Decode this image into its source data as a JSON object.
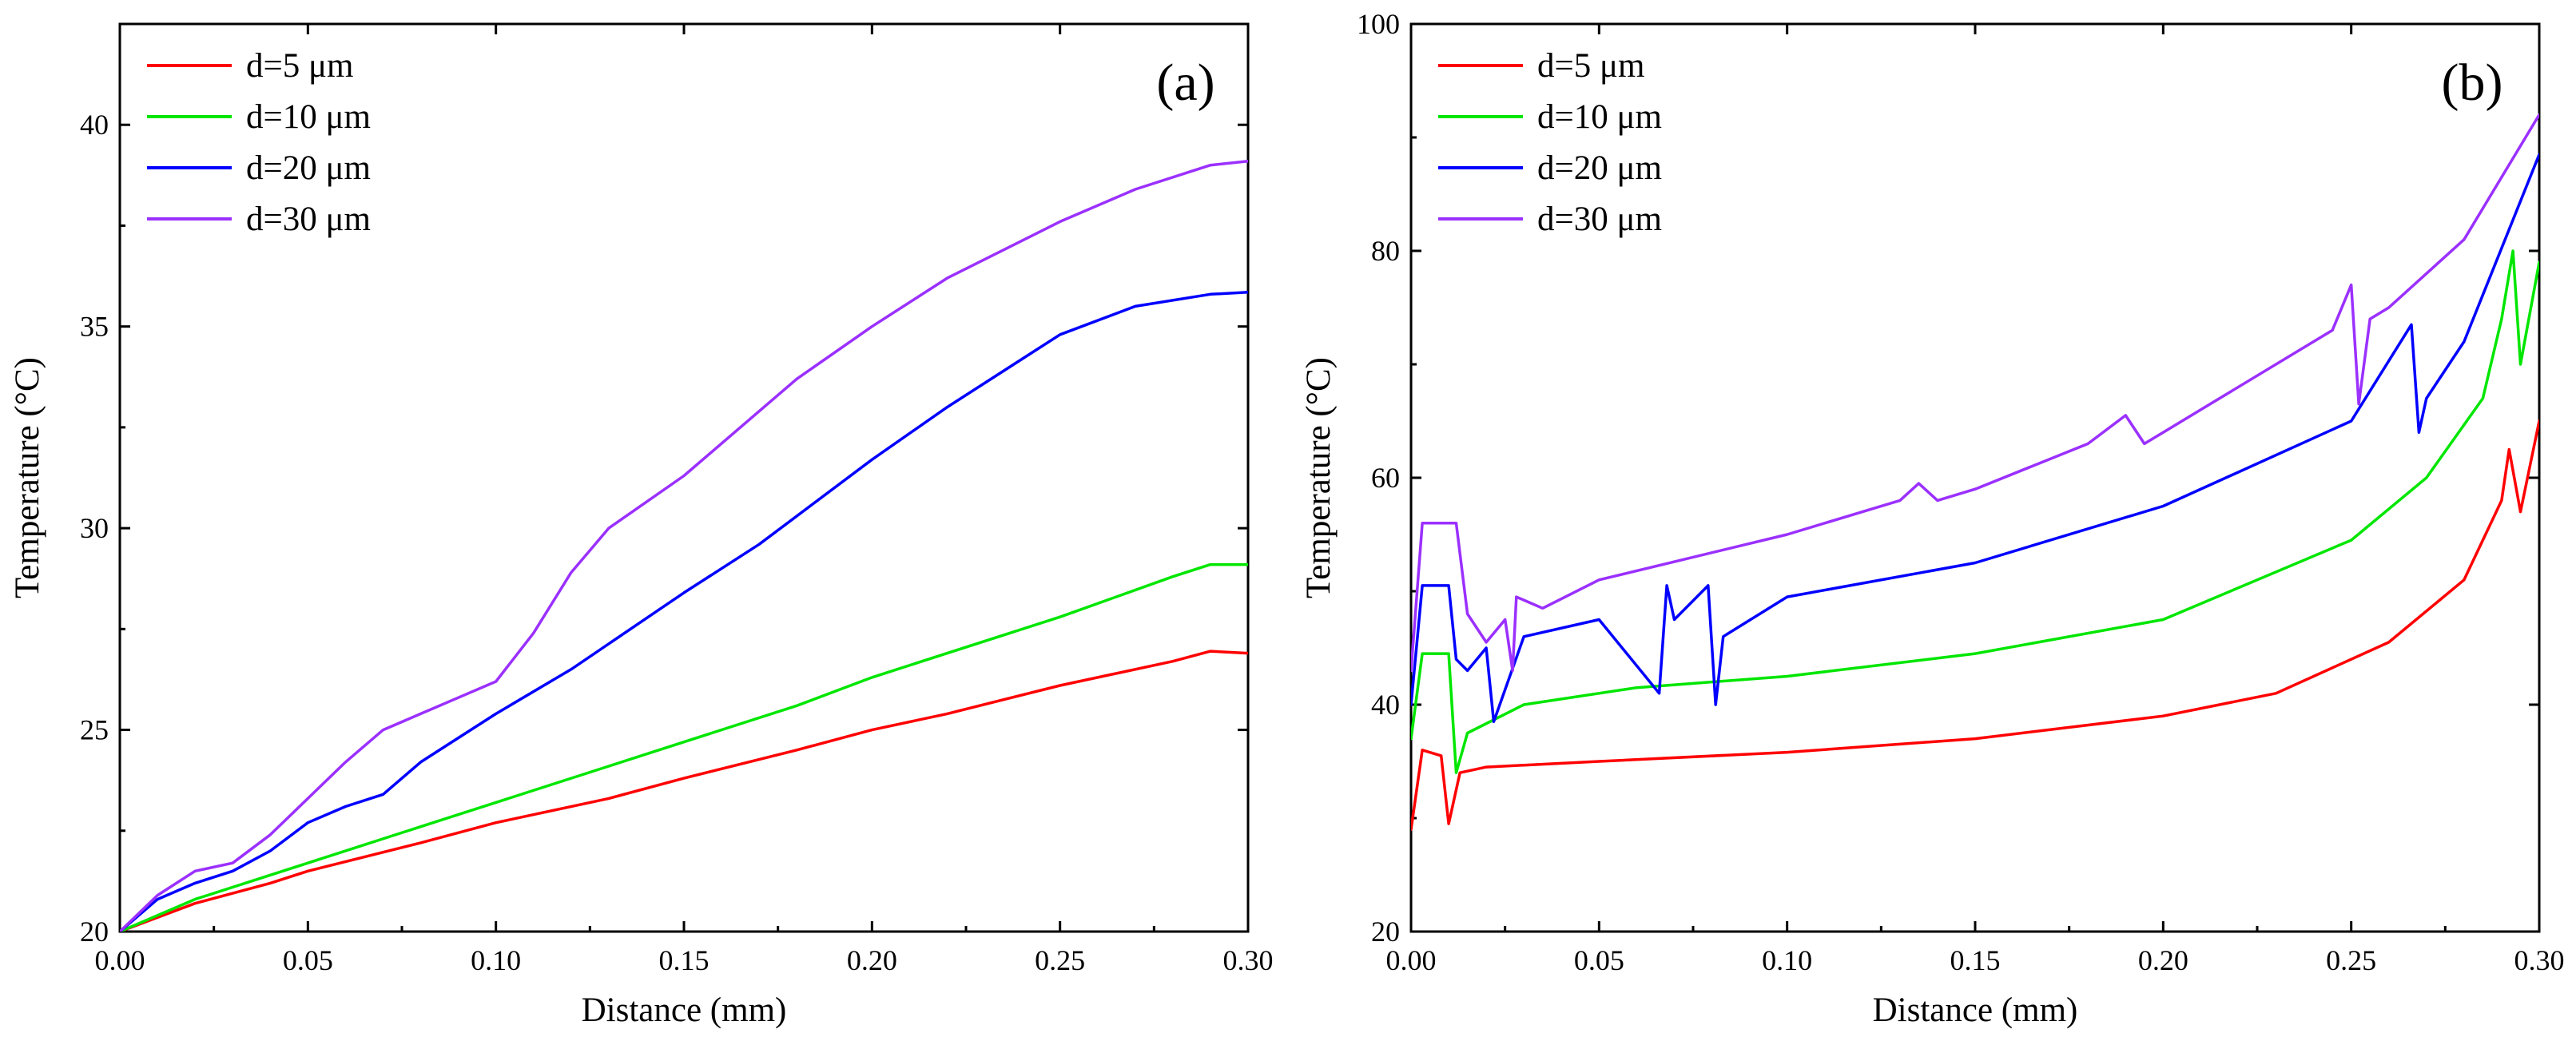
{
  "chart_data": [
    {
      "type": "line",
      "panel_label": "(a)",
      "xlabel": "Distance (mm)",
      "ylabel": "Temperature (°C)",
      "xlim": [
        0,
        0.3
      ],
      "ylim": [
        20,
        42.5
      ],
      "xticks": [
        0,
        0.05,
        0.1,
        0.15,
        0.2,
        0.25,
        0.3
      ],
      "xticklabels": [
        "0.00",
        "0.05",
        "0.10",
        "0.15",
        "0.20",
        "0.25",
        "0.30"
      ],
      "yticks": [
        20,
        25,
        30,
        35,
        40
      ],
      "yticklabels": [
        "20",
        "25",
        "30",
        "35",
        "40"
      ],
      "legend_position": "top-left",
      "series": [
        {
          "name": "d=5 μm",
          "color": "#ff0000",
          "x": [
            0,
            0.02,
            0.04,
            0.05,
            0.08,
            0.1,
            0.13,
            0.15,
            0.18,
            0.2,
            0.22,
            0.25,
            0.28,
            0.29,
            0.3
          ],
          "y": [
            20,
            20.7,
            21.2,
            21.5,
            22.2,
            22.7,
            23.3,
            23.8,
            24.5,
            25.0,
            25.4,
            26.1,
            26.7,
            26.95,
            26.9
          ]
        },
        {
          "name": "d=10 μm",
          "color": "#00e600",
          "x": [
            0,
            0.02,
            0.04,
            0.05,
            0.08,
            0.1,
            0.13,
            0.15,
            0.18,
            0.2,
            0.22,
            0.25,
            0.28,
            0.29,
            0.3
          ],
          "y": [
            20,
            20.8,
            21.4,
            21.7,
            22.6,
            23.2,
            24.1,
            24.7,
            25.6,
            26.3,
            26.9,
            27.8,
            28.8,
            29.1,
            29.1
          ]
        },
        {
          "name": "d=20 μm",
          "color": "#0000ff",
          "x": [
            0,
            0.01,
            0.02,
            0.03,
            0.04,
            0.05,
            0.06,
            0.07,
            0.08,
            0.1,
            0.12,
            0.15,
            0.17,
            0.2,
            0.22,
            0.25,
            0.27,
            0.29,
            0.3
          ],
          "y": [
            20,
            20.8,
            21.2,
            21.5,
            22.0,
            22.7,
            23.1,
            23.4,
            24.2,
            25.4,
            26.5,
            28.4,
            29.6,
            31.7,
            33.0,
            34.8,
            35.5,
            35.8,
            35.85
          ]
        },
        {
          "name": "d=30 μm",
          "color": "#9b30ff",
          "x": [
            0,
            0.01,
            0.02,
            0.03,
            0.04,
            0.05,
            0.06,
            0.07,
            0.08,
            0.09,
            0.1,
            0.11,
            0.12,
            0.13,
            0.15,
            0.18,
            0.2,
            0.22,
            0.25,
            0.27,
            0.29,
            0.3
          ],
          "y": [
            20,
            20.9,
            21.5,
            21.7,
            22.4,
            23.3,
            24.2,
            25.0,
            25.4,
            25.8,
            26.2,
            27.4,
            28.9,
            30.0,
            31.3,
            33.7,
            35.0,
            36.2,
            37.6,
            38.4,
            39.0,
            39.1
          ]
        }
      ]
    },
    {
      "type": "line",
      "panel_label": "(b)",
      "xlabel": "Distance (mm)",
      "ylabel": "Temperature (°C)",
      "xlim": [
        0,
        0.3
      ],
      "ylim": [
        20,
        100
      ],
      "xticks": [
        0,
        0.05,
        0.1,
        0.15,
        0.2,
        0.25,
        0.3
      ],
      "xticklabels": [
        "0.00",
        "0.05",
        "0.10",
        "0.15",
        "0.20",
        "0.25",
        "0.30"
      ],
      "yticks": [
        20,
        40,
        60,
        80,
        100
      ],
      "yticklabels": [
        "20",
        "40",
        "60",
        "80",
        "100"
      ],
      "legend_position": "top-left",
      "series": [
        {
          "name": "d=5 μm",
          "color": "#ff0000",
          "x": [
            0,
            0.003,
            0.008,
            0.01,
            0.013,
            0.02,
            0.05,
            0.1,
            0.15,
            0.2,
            0.23,
            0.26,
            0.28,
            0.29,
            0.292,
            0.295,
            0.3
          ],
          "y": [
            29,
            36,
            35.5,
            29.5,
            34,
            34.5,
            35,
            35.8,
            37,
            39,
            41,
            45.5,
            51,
            58,
            62.5,
            57,
            65
          ]
        },
        {
          "name": "d=10 μm",
          "color": "#00e600",
          "x": [
            0,
            0.003,
            0.01,
            0.012,
            0.015,
            0.03,
            0.06,
            0.1,
            0.15,
            0.2,
            0.25,
            0.27,
            0.285,
            0.29,
            0.293,
            0.295,
            0.3
          ],
          "y": [
            37,
            44.5,
            44.5,
            34,
            37.5,
            40,
            41.5,
            42.5,
            44.5,
            47.5,
            54.5,
            60,
            67,
            74,
            80,
            70,
            79
          ]
        },
        {
          "name": "d=20 μm",
          "color": "#0000ff",
          "x": [
            0,
            0.003,
            0.01,
            0.012,
            0.015,
            0.02,
            0.022,
            0.03,
            0.05,
            0.066,
            0.068,
            0.07,
            0.079,
            0.081,
            0.083,
            0.1,
            0.15,
            0.2,
            0.25,
            0.266,
            0.268,
            0.27,
            0.28,
            0.3
          ],
          "y": [
            40,
            50.5,
            50.5,
            44,
            43,
            45,
            38.5,
            46,
            47.5,
            41,
            50.5,
            47.5,
            50.5,
            40,
            46,
            49.5,
            52.5,
            57.5,
            65,
            73.5,
            64,
            67,
            72,
            88.5
          ]
        },
        {
          "name": "d=30 μm",
          "color": "#9b30ff",
          "x": [
            0,
            0.003,
            0.012,
            0.015,
            0.02,
            0.025,
            0.027,
            0.028,
            0.035,
            0.05,
            0.1,
            0.13,
            0.135,
            0.14,
            0.15,
            0.18,
            0.19,
            0.195,
            0.2,
            0.245,
            0.25,
            0.252,
            0.255,
            0.26,
            0.28,
            0.3
          ],
          "y": [
            43,
            56,
            56,
            48,
            45.5,
            47.5,
            43,
            49.5,
            48.5,
            51,
            55,
            58,
            59.5,
            58,
            59,
            63,
            65.5,
            63,
            64,
            73,
            77,
            66.5,
            74,
            75,
            81,
            92
          ]
        }
      ]
    }
  ]
}
